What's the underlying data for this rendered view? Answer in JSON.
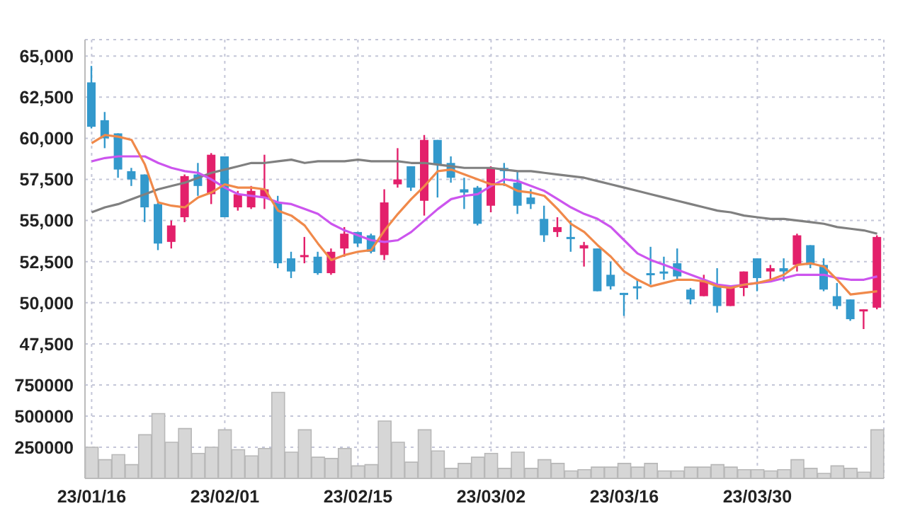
{
  "chart_data": [
    {
      "type": "candlestick",
      "categories": [
        null,
        null,
        null,
        null,
        null,
        null,
        null,
        null,
        null,
        null,
        null,
        null,
        null,
        null,
        null,
        null,
        null,
        null,
        null,
        null,
        null,
        null,
        null,
        null,
        null,
        null,
        null,
        null,
        null,
        null,
        null,
        null,
        null,
        null,
        null,
        null,
        null,
        null,
        null,
        null,
        null,
        null,
        null,
        null,
        null,
        null,
        null,
        null,
        null,
        null,
        null,
        null,
        null,
        null,
        null,
        null,
        null,
        null,
        null,
        null
      ],
      "ohlc": [
        [
          63400,
          64400,
          60600,
          60700
        ],
        [
          61100,
          61600,
          59400,
          60000
        ],
        [
          60300,
          60300,
          57600,
          58100
        ],
        [
          58000,
          58200,
          57100,
          57500
        ],
        [
          57800,
          57800,
          54900,
          55800
        ],
        [
          56000,
          56100,
          53200,
          53600
        ],
        [
          53700,
          55000,
          53300,
          54700
        ],
        [
          55200,
          57800,
          54900,
          57700
        ],
        [
          57800,
          58500,
          56500,
          57100
        ],
        [
          56600,
          59100,
          56000,
          59000
        ],
        [
          58900,
          58900,
          55200,
          55200
        ],
        [
          55800,
          56800,
          55600,
          56600
        ],
        [
          55800,
          57100,
          55700,
          56800
        ],
        [
          56400,
          59000,
          55700,
          56900
        ],
        [
          56100,
          56500,
          52100,
          52400
        ],
        [
          52700,
          53100,
          51500,
          51900
        ],
        [
          52800,
          54000,
          52400,
          52900
        ],
        [
          52800,
          53100,
          51700,
          51800
        ],
        [
          51800,
          53300,
          51700,
          53100
        ],
        [
          53300,
          54600,
          52800,
          54200
        ],
        [
          54300,
          54300,
          53400,
          53600
        ],
        [
          54100,
          54200,
          53000,
          53100
        ],
        [
          52900,
          56900,
          52600,
          56100
        ],
        [
          57200,
          59400,
          57000,
          57500
        ],
        [
          58300,
          58300,
          56800,
          57000
        ],
        [
          56200,
          60200,
          55300,
          59900
        ],
        [
          59900,
          59900,
          56400,
          58400
        ],
        [
          58500,
          58900,
          57300,
          57600
        ],
        [
          56900,
          57600,
          55700,
          56700
        ],
        [
          57000,
          57100,
          54700,
          54800
        ],
        [
          55900,
          58300,
          55500,
          58200
        ],
        [
          58200,
          58500,
          57100,
          58000
        ],
        [
          57300,
          58000,
          55400,
          55900
        ],
        [
          56400,
          56900,
          55700,
          56000
        ],
        [
          55100,
          55900,
          53700,
          54100
        ],
        [
          54300,
          55200,
          54000,
          54600
        ],
        [
          54000,
          55000,
          53100,
          53900
        ],
        [
          53300,
          53700,
          52200,
          53500
        ],
        [
          53300,
          53300,
          50700,
          50700
        ],
        [
          51700,
          52500,
          50800,
          51000
        ],
        [
          50600,
          50600,
          49200,
          50500
        ],
        [
          51000,
          51400,
          50200,
          50900
        ],
        [
          51800,
          53400,
          51100,
          51700
        ],
        [
          51900,
          52800,
          51400,
          51800
        ],
        [
          52400,
          53300,
          51400,
          51600
        ],
        [
          50800,
          50900,
          49900,
          50200
        ],
        [
          50400,
          51700,
          50400,
          51300
        ],
        [
          51000,
          52100,
          49400,
          49800
        ],
        [
          49800,
          51000,
          49800,
          51000
        ],
        [
          50900,
          51900,
          50400,
          51900
        ],
        [
          52700,
          52700,
          50700,
          51500
        ],
        [
          51900,
          52300,
          51300,
          52100
        ],
        [
          52100,
          52700,
          51300,
          51900
        ],
        [
          52300,
          54200,
          51900,
          54100
        ],
        [
          53500,
          53500,
          52100,
          52300
        ],
        [
          52300,
          52700,
          50700,
          50800
        ],
        [
          50400,
          51200,
          49600,
          49800
        ],
        [
          50200,
          50200,
          48900,
          49000
        ],
        [
          49500,
          49600,
          48400,
          49600
        ],
        [
          49700,
          54100,
          49600,
          54000
        ]
      ],
      "colors": [
        "#3399cc",
        "#3399cc",
        "#3399cc",
        "#3399cc",
        "#3399cc",
        "#3399cc",
        "#e3206b",
        "#e3206b",
        "#3399cc",
        "#e3206b",
        "#3399cc",
        "#e3206b",
        "#e3206b",
        "#e3206b",
        "#3399cc",
        "#3399cc",
        "#e3206b",
        "#3399cc",
        "#e3206b",
        "#e3206b",
        "#3399cc",
        "#3399cc",
        "#e3206b",
        "#e3206b",
        "#3399cc",
        "#e3206b",
        "#3399cc",
        "#3399cc",
        "#3399cc",
        "#3399cc",
        "#e3206b",
        "#3399cc",
        "#3399cc",
        "#3399cc",
        "#3399cc",
        "#e3206b",
        "#3399cc",
        "#e3206b",
        "#3399cc",
        "#3399cc",
        "#3399cc",
        "#3399cc",
        "#3399cc",
        "#3399cc",
        "#3399cc",
        "#3399cc",
        "#e3206b",
        "#3399cc",
        "#e3206b",
        "#e3206b",
        "#3399cc",
        "#e3206b",
        "#3399cc",
        "#e3206b",
        "#3399cc",
        "#3399cc",
        "#3399cc",
        "#3399cc",
        "#e3206b",
        "#e3206b"
      ],
      "series": [
        {
          "type": "line",
          "color": "#808080",
          "values": [
            55500,
            55800,
            56000,
            56300,
            56600,
            56900,
            57100,
            57300,
            57600,
            57900,
            58100,
            58300,
            58500,
            58500,
            58600,
            58700,
            58500,
            58600,
            58600,
            58600,
            58700,
            58600,
            58600,
            58600,
            58500,
            58500,
            58400,
            58300,
            58200,
            58200,
            58200,
            58100,
            58000,
            58000,
            57900,
            57800,
            57700,
            57600,
            57400,
            57200,
            57000,
            56800,
            56600,
            56400,
            56200,
            56000,
            55800,
            55600,
            55500,
            55300,
            55200,
            55100,
            55100,
            55000,
            54900,
            54800,
            54600,
            54500,
            54400,
            54200
          ]
        },
        {
          "type": "line",
          "color": "#cc55ee",
          "values": [
            58600,
            58800,
            58900,
            58900,
            58900,
            58500,
            58200,
            58000,
            57900,
            57500,
            57000,
            56600,
            56500,
            56400,
            56100,
            56000,
            55700,
            55400,
            54800,
            54400,
            54100,
            53800,
            53700,
            53800,
            54300,
            55000,
            55700,
            56300,
            56500,
            56600,
            57100,
            57500,
            57400,
            57100,
            56800,
            56300,
            55800,
            55400,
            55100,
            54600,
            53800,
            53000,
            52600,
            52300,
            52000,
            51700,
            51400,
            51100,
            51000,
            51100,
            51200,
            51300,
            51500,
            51700,
            51700,
            51700,
            51500,
            51400,
            51400,
            51600
          ]
        },
        {
          "type": "line",
          "color": "#f0894a",
          "values": [
            59700,
            60200,
            60100,
            59900,
            58400,
            56100,
            55900,
            55800,
            56400,
            56700,
            57200,
            57000,
            57000,
            56900,
            55600,
            55300,
            54700,
            53600,
            52600,
            52900,
            53100,
            53200,
            54400,
            55400,
            56300,
            57100,
            58000,
            58100,
            57800,
            57500,
            57200,
            57200,
            56800,
            56700,
            56500,
            55700,
            54800,
            54300,
            53500,
            52800,
            51900,
            51400,
            51000,
            51200,
            51400,
            51400,
            51300,
            51000,
            50900,
            51100,
            51200,
            51400,
            51700,
            52300,
            52400,
            52200,
            51400,
            50500,
            50600,
            50700
          ]
        }
      ],
      "ylim": [
        45000,
        66000
      ],
      "yticks": [
        {
          "value": 47500,
          "label": "47,500"
        },
        {
          "value": 50000,
          "label": "50,000"
        },
        {
          "value": 52500,
          "label": "52,500"
        },
        {
          "value": 55000,
          "label": "55,000"
        },
        {
          "value": 57500,
          "label": "57,500"
        },
        {
          "value": 60000,
          "label": "60,000"
        },
        {
          "value": 62500,
          "label": "62,500"
        },
        {
          "value": 65000,
          "label": "65,000"
        }
      ],
      "grid": true,
      "tick_labels": "y"
    },
    {
      "type": "bar",
      "categories": [
        "23/01/16",
        null,
        null,
        null,
        null,
        null,
        null,
        null,
        null,
        null,
        "23/02/01",
        null,
        null,
        null,
        null,
        null,
        null,
        null,
        null,
        null,
        "23/02/15",
        null,
        null,
        null,
        null,
        null,
        null,
        null,
        null,
        null,
        "23/03/02",
        null,
        null,
        null,
        null,
        null,
        null,
        null,
        null,
        null,
        "23/03/16",
        null,
        null,
        null,
        null,
        null,
        null,
        null,
        null,
        null,
        "23/03/30",
        null,
        null,
        null,
        null,
        null,
        null,
        null,
        null,
        null
      ],
      "values": [
        250000,
        150000,
        190000,
        110000,
        350000,
        520000,
        290000,
        400000,
        200000,
        250000,
        390000,
        230000,
        180000,
        240000,
        690000,
        210000,
        390000,
        170000,
        160000,
        240000,
        100000,
        110000,
        460000,
        290000,
        130000,
        390000,
        220000,
        80000,
        120000,
        170000,
        200000,
        80000,
        210000,
        80000,
        150000,
        120000,
        60000,
        70000,
        90000,
        90000,
        120000,
        90000,
        120000,
        60000,
        60000,
        90000,
        90000,
        110000,
        90000,
        70000,
        70000,
        60000,
        70000,
        150000,
        80000,
        40000,
        100000,
        80000,
        50000,
        390000
      ],
      "color": "#d6d6d6",
      "ylim": [
        0,
        750000
      ],
      "yticks": [
        250000,
        500000,
        750000
      ],
      "grid": true
    }
  ]
}
